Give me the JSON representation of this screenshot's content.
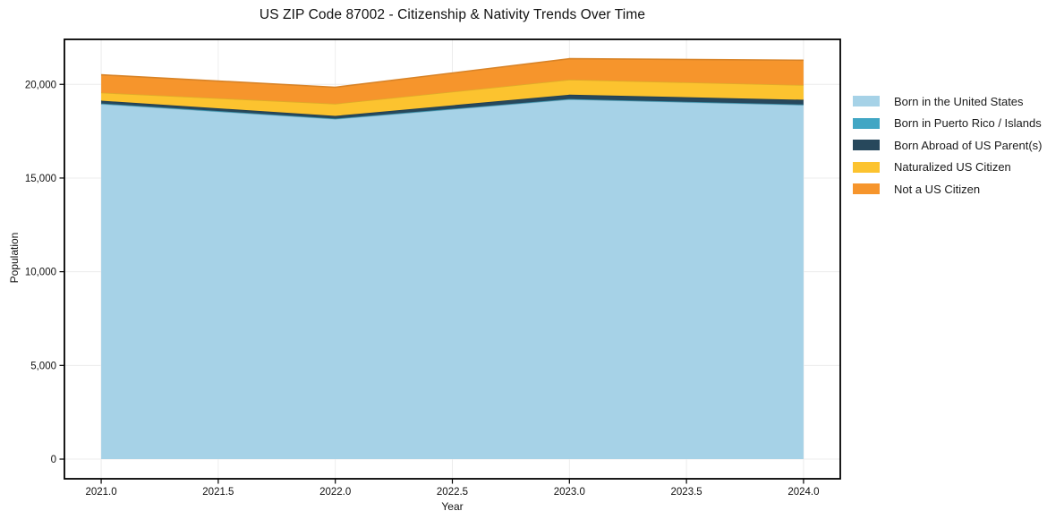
{
  "chart_data": {
    "type": "area",
    "stacked": true,
    "title": "US ZIP Code 87002 - Citizenship & Nativity Trends Over Time",
    "xlabel": "Year",
    "ylabel": "Population",
    "x": [
      2021,
      2022,
      2023,
      2024
    ],
    "series": [
      {
        "name": "Born in the United States",
        "color": "#A6D2E7",
        "values": [
          18950,
          18150,
          19200,
          18900
        ]
      },
      {
        "name": "Born in Puerto Rico / Islands",
        "color": "#41A6C4",
        "values": [
          30,
          25,
          20,
          25
        ]
      },
      {
        "name": "Born Abroad of US Parent(s)",
        "color": "#27485C",
        "values": [
          150,
          140,
          230,
          250
        ]
      },
      {
        "name": "Naturalized US Citizen",
        "color": "#FCC32F",
        "values": [
          430,
          650,
          800,
          790
        ]
      },
      {
        "name": "Not a US Citizen",
        "color": "#F6952C",
        "values": [
          950,
          880,
          1120,
          1320
        ]
      }
    ],
    "totals": [
      20510,
      19845,
      21370,
      21285
    ],
    "xlim": [
      2020.843,
      2024.157
    ],
    "ylim": [
      -1050,
      22400
    ],
    "xticks": {
      "values": [
        2021.0,
        2021.5,
        2022.0,
        2022.5,
        2023.0,
        2023.5,
        2024.0
      ],
      "labels": [
        "2021.0",
        "2021.5",
        "2022.0",
        "2022.5",
        "2023.0",
        "2023.5",
        "2024.0"
      ]
    },
    "yticks": {
      "values": [
        0,
        5000,
        10000,
        15000,
        20000
      ],
      "labels": [
        "0",
        "5,000",
        "10,000",
        "15,000",
        "20,000"
      ]
    },
    "grid": true,
    "grid_color": "#ececec",
    "frame_color": "#000000",
    "text_color": "#111111",
    "legend_position": "right-outside"
  }
}
